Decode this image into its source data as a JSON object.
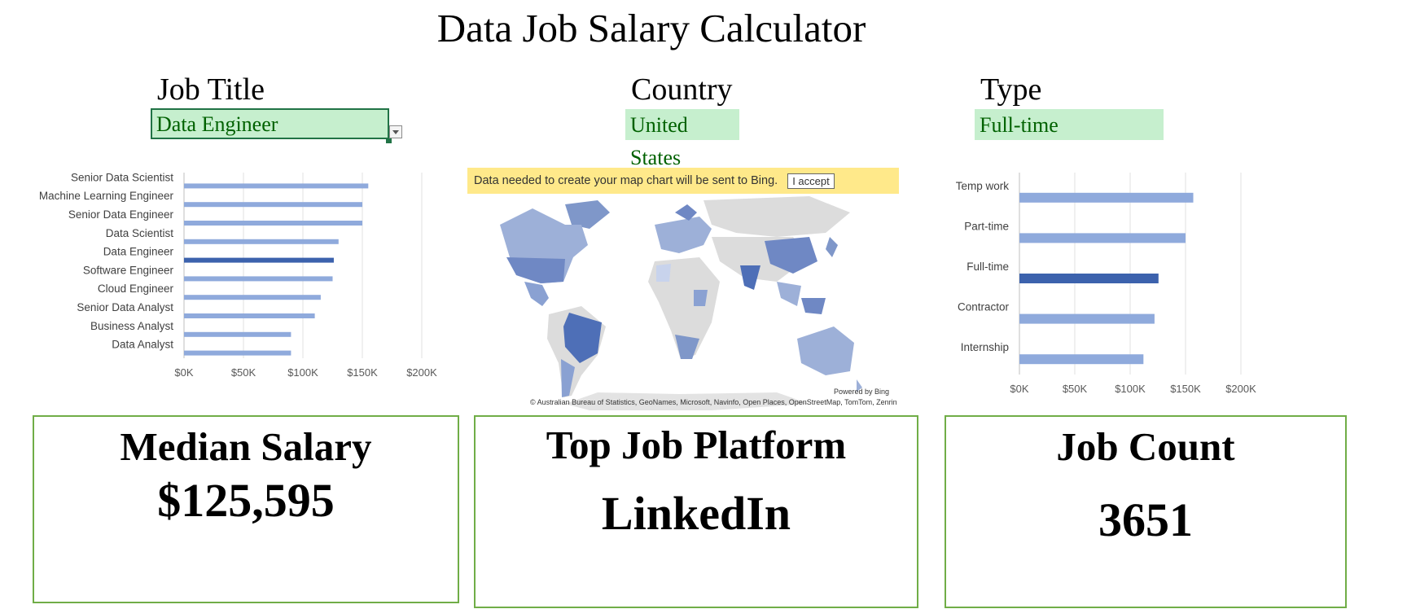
{
  "title": "Data Job Salary Calculator",
  "filters": {
    "job_title": {
      "label": "Job Title",
      "value": "Data Engineer"
    },
    "country": {
      "label": "Country",
      "value": "United States"
    },
    "type": {
      "label": "Type",
      "value": "Full-time"
    }
  },
  "map": {
    "banner_text": "Data needed to create your map chart will be sent to Bing.",
    "accept_button": "I accept",
    "powered_by": "Powered by Bing",
    "attribution": "© Australian Bureau of Statistics, GeoNames, Microsoft, Navinfo, Open Places, OpenStreetMap, TomTom, Zenrin"
  },
  "cards": {
    "median": {
      "title": "Median Salary",
      "value": "$125,595"
    },
    "platform": {
      "title": "Top Job Platform",
      "value": "LinkedIn"
    },
    "count": {
      "title": "Job Count",
      "value": "3651"
    }
  },
  "colors": {
    "accent": "#70ad47",
    "cell_fill": "#c6efce",
    "cell_text": "#006100",
    "bar_default": "#8faadc",
    "bar_highlight": "#3c62ad"
  },
  "chart_data": [
    {
      "type": "bar",
      "orientation": "horizontal",
      "categories": [
        "Senior Data Scientist",
        "Machine Learning Engineer",
        "Senior Data Engineer",
        "Data Scientist",
        "Data Engineer",
        "Software Engineer",
        "Cloud Engineer",
        "Senior Data Analyst",
        "Business Analyst",
        "Data Analyst"
      ],
      "values": [
        155000,
        150000,
        150000,
        130000,
        126000,
        125000,
        115000,
        110000,
        90000,
        90000
      ],
      "highlight": "Data Engineer",
      "xlim": [
        0,
        200000
      ],
      "xticks": [
        "$0K",
        "$50K",
        "$100K",
        "$150K",
        "$200K"
      ],
      "grid": true
    },
    {
      "type": "bar",
      "orientation": "horizontal",
      "categories": [
        "Temp work",
        "Part-time",
        "Full-time",
        "Contractor",
        "Internship"
      ],
      "values": [
        157000,
        150000,
        125595,
        122000,
        112000
      ],
      "highlight": "Full-time",
      "xlim": [
        0,
        200000
      ],
      "xticks": [
        "$0K",
        "$50K",
        "$100K",
        "$150K",
        "$200K"
      ],
      "grid": true
    }
  ]
}
